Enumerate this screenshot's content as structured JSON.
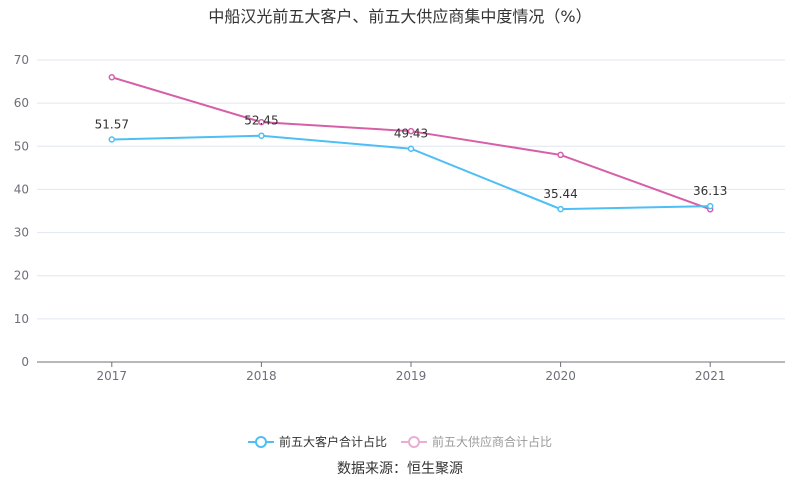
{
  "chart_data": {
    "type": "line",
    "title": "中船汉光前五大客户、前五大供应商集中度情况（%）",
    "categories": [
      "2017",
      "2018",
      "2019",
      "2020",
      "2021"
    ],
    "ylim": [
      0,
      70
    ],
    "yticks": [
      0,
      10,
      20,
      30,
      40,
      50,
      60,
      70
    ],
    "grid": true,
    "legend_position": "bottom",
    "series": [
      {
        "name": "前五大客户合计占比",
        "color": "#4dbff5",
        "values": [
          51.57,
          52.45,
          49.43,
          35.44,
          36.13
        ],
        "labels": [
          "51.57",
          "52.45",
          "49.43",
          "35.44",
          "36.13"
        ],
        "legend_active": true
      },
      {
        "name": "前五大供应商合计占比",
        "color": "#d65fa8",
        "values": [
          66.0,
          55.6,
          53.5,
          48.0,
          35.4
        ],
        "legend_active": false
      }
    ]
  },
  "source": "数据来源：恒生聚源"
}
